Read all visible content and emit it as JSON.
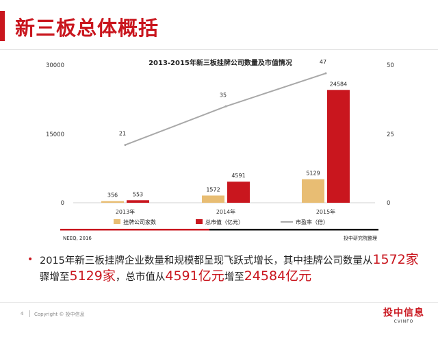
{
  "page": {
    "title": "新三板总体概括",
    "page_number": "4",
    "copyright": "Copyright © 投中信息",
    "logo_main": "投中信息",
    "logo_sub": "CVINFO"
  },
  "colors": {
    "accent": "#c9161e",
    "companies": "#e8bd73",
    "market_value": "#c9161e",
    "pe_line": "#a8a8a8"
  },
  "chart_data": {
    "type": "bar",
    "title": "2013-2015年新三板挂牌公司数量及市值情况",
    "categories": [
      "2013年",
      "2014年",
      "2015年"
    ],
    "series": [
      {
        "name": "挂牌公司家数",
        "kind": "bar",
        "axis": "left",
        "values": [
          356,
          1572,
          5129
        ]
      },
      {
        "name": "总市值（亿元）",
        "kind": "bar",
        "axis": "left",
        "values": [
          553,
          4591,
          24584
        ]
      },
      {
        "name": "市盈率（倍）",
        "kind": "line",
        "axis": "right",
        "values": [
          21,
          35,
          47
        ]
      }
    ],
    "y_left": {
      "range": [
        0,
        30000
      ],
      "ticks": [
        "0",
        "15000",
        "30000"
      ]
    },
    "y_right": {
      "range": [
        0,
        50
      ],
      "ticks": [
        "0",
        "25",
        "50"
      ]
    },
    "legend_position": "bottom",
    "source": "NEEQ, 2016",
    "compiled_by": "投中研究院整理",
    "grid": false
  },
  "summary": {
    "part1": "2015年新三板挂牌企业数量和规模都呈现飞跃式增长，其中挂牌公司数量从",
    "hl1": "1572家",
    "part2": "骤增至",
    "hl2": "5129家",
    "part3": "，总市值从",
    "hl3": "4591亿元",
    "part4": "增至",
    "hl4": "24584亿元"
  }
}
